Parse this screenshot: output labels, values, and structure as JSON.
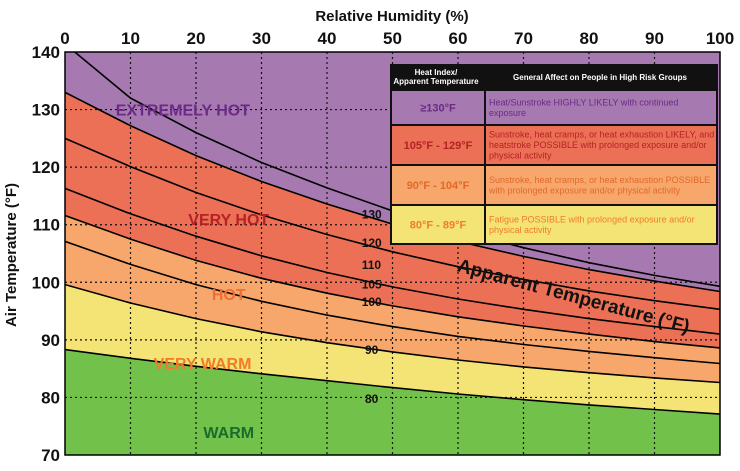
{
  "chart_data": {
    "type": "area",
    "title": "",
    "xlabel": "Relative Humidity (%)",
    "ylabel": "Air Temperature (°F)",
    "xlim": [
      0,
      100
    ],
    "ylim": [
      70,
      140
    ],
    "xticks": [
      "0",
      "10",
      "20",
      "30",
      "40",
      "50",
      "60",
      "70",
      "80",
      "90",
      "100"
    ],
    "yticks": [
      "70",
      "80",
      "90",
      "100",
      "110",
      "120",
      "130",
      "140"
    ],
    "grid": true,
    "series_annotation": "Apparent Temperature (°F)",
    "curves": [
      {
        "name": "80",
        "x": [
          0,
          10,
          20,
          30,
          40,
          50,
          60,
          70,
          80,
          90,
          100
        ],
        "y": [
          88.3,
          86.8,
          85.4,
          84.1,
          82.9,
          81.7,
          80.6,
          79.6,
          78.7,
          77.9,
          77.1
        ]
      },
      {
        "name": "90",
        "x": [
          0,
          10,
          20,
          30,
          40,
          50,
          60,
          70,
          80,
          90,
          100
        ],
        "y": [
          99.6,
          96.4,
          93.7,
          91.4,
          89.5,
          87.9,
          86.5,
          85.3,
          84.3,
          83.4,
          82.6
        ]
      },
      {
        "name": "100",
        "x": [
          0,
          10,
          20,
          30,
          40,
          50,
          60,
          70,
          80,
          90,
          100
        ],
        "y": [
          107.1,
          103.1,
          99.6,
          96.7,
          94.3,
          92.3,
          90.6,
          89.2,
          88.0,
          86.9,
          85.9
        ]
      },
      {
        "name": "105",
        "x": [
          0,
          10,
          20,
          30,
          40,
          50,
          60,
          70,
          80,
          90,
          100
        ],
        "y": [
          111.6,
          107.5,
          103.8,
          100.7,
          98.1,
          95.9,
          94.0,
          92.4,
          91.0,
          89.7,
          88.6
        ]
      },
      {
        "name": "110",
        "x": [
          0,
          10,
          20,
          30,
          40,
          50,
          60,
          70,
          80,
          90,
          100
        ],
        "y": [
          116.3,
          111.9,
          108.0,
          104.6,
          101.7,
          99.2,
          97.1,
          95.3,
          93.7,
          92.3,
          91.0
        ]
      },
      {
        "name": "120",
        "x": [
          0,
          10,
          20,
          30,
          40,
          50,
          60,
          70,
          80,
          90,
          100
        ],
        "y": [
          125.0,
          120.1,
          115.6,
          111.7,
          108.3,
          105.3,
          102.7,
          100.5,
          98.5,
          96.8,
          95.3
        ]
      },
      {
        "name": "130",
        "x": [
          0,
          10,
          20,
          30,
          40,
          50,
          60,
          70,
          80,
          90,
          100
        ],
        "y": [
          133.0,
          127.2,
          122.0,
          117.5,
          113.6,
          110.1,
          107.1,
          104.5,
          102.2,
          100.2,
          98.4
        ]
      },
      {
        "name": "",
        "x": [
          1.5,
          10,
          20,
          30,
          40,
          50,
          60,
          70,
          80,
          90,
          100
        ],
        "y": [
          140,
          132.0,
          126.0,
          120.8,
          116.4,
          112.4,
          109.0,
          106.0,
          103.4,
          101.2,
          99.3
        ]
      }
    ],
    "curve_label_positions": [
      {
        "text": "130",
        "x": 45.3,
        "y": 111.8
      },
      {
        "text": "120",
        "x": 45.3,
        "y": 106.8
      },
      {
        "text": "110",
        "x": 45.3,
        "y": 103.0
      },
      {
        "text": "105",
        "x": 45.3,
        "y": 99.6
      },
      {
        "text": "100",
        "x": 45.3,
        "y": 96.6
      },
      {
        "text": "90",
        "x": 45.8,
        "y": 88.2
      },
      {
        "text": "80",
        "x": 45.8,
        "y": 79.7
      }
    ],
    "zones": [
      {
        "label": "EXTREMELY HOT",
        "color": "#a67ab0",
        "text_color": "#6b2a86",
        "x": 18,
        "y": 130
      },
      {
        "label": "VERY HOT",
        "color": "#ec7055",
        "text_color": "#b52125",
        "x": 25,
        "y": 111
      },
      {
        "label": "HOT",
        "color": "#f7a76c",
        "text_color": "#ee6f33",
        "x": 25,
        "y": 98
      },
      {
        "label": "VERY WARM",
        "color": "#f4e476",
        "text_color": "#f27b28",
        "x": 21,
        "y": 86
      },
      {
        "label": "WARM",
        "color": "#72c14a",
        "text_color": "#1b6b2d",
        "x": 25,
        "y": 74
      }
    ]
  },
  "legend": {
    "header_col1": "Heat Index/Apparent Temperature",
    "header_col2": "General Affect on People in High Risk Groups",
    "rows": [
      {
        "range": "≥130°F",
        "text": "Heat/Sunstroke HIGHLY LIKELY with continued exposure",
        "bg": "#a67ab0",
        "fg": "#6b2a86"
      },
      {
        "range": "105°F - 129°F",
        "text": "Sunstroke, heat cramps, or heat exhaustion LIKELY, and heatstroke POSSIBLE with prolonged exposure and/or physical activity",
        "bg": "#ec7055",
        "fg": "#b52125"
      },
      {
        "range": "90°F - 104°F",
        "text": "Sunstroke, heat cramps, or heat exhaustion POSSIBLE with prolonged exposure and/or physical activity",
        "bg": "#f7a76c",
        "fg": "#e2682a"
      },
      {
        "range": "80°F - 89°F",
        "text": "Fatigue POSSIBLE with prolonged exposure and/or physical activity",
        "bg": "#f4e476",
        "fg": "#f27b28"
      }
    ]
  }
}
